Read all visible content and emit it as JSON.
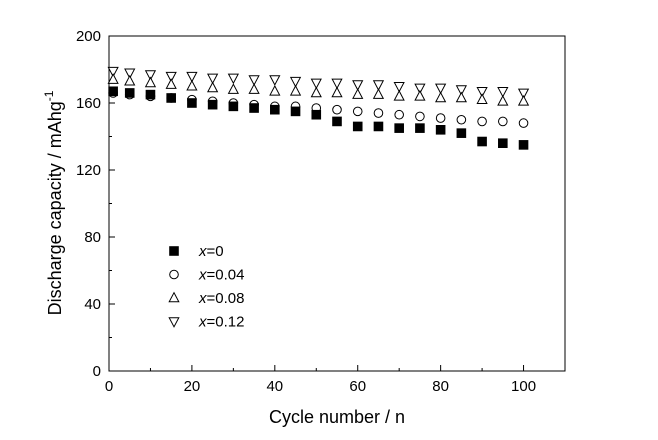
{
  "chart_data": {
    "type": "scatter",
    "xlabel": "Cycle number / n",
    "ylabel_main": "Discharge capacity / mAhg",
    "ylabel_sup": "-1",
    "xlim": [
      0,
      110
    ],
    "ylim": [
      0,
      200
    ],
    "xticks": [
      "0",
      "20",
      "40",
      "60",
      "80",
      "100"
    ],
    "yticks": [
      "0",
      "40",
      "80",
      "120",
      "160",
      "200"
    ],
    "grid": false,
    "legend_position": "lower-left",
    "series": [
      {
        "name_italic": "x",
        "name_rest": "=0",
        "marker": "filled-square",
        "x": [
          1,
          5,
          10,
          15,
          20,
          25,
          30,
          35,
          40,
          45,
          50,
          55,
          60,
          65,
          70,
          75,
          80,
          85,
          90,
          95,
          100
        ],
        "y": [
          167,
          166,
          165,
          163,
          160,
          159,
          158,
          157,
          156,
          155,
          153,
          149,
          146,
          146,
          145,
          145,
          144,
          142,
          137,
          136,
          135
        ]
      },
      {
        "name_italic": "x",
        "name_rest": "=0.04",
        "marker": "open-circle",
        "x": [
          1,
          5,
          10,
          15,
          20,
          25,
          30,
          35,
          40,
          45,
          50,
          55,
          60,
          65,
          70,
          75,
          80,
          85,
          90,
          95,
          100
        ],
        "y": [
          166,
          165,
          164,
          163,
          162,
          161,
          160,
          159,
          158,
          158,
          157,
          156,
          155,
          154,
          153,
          152,
          151,
          150,
          149,
          149,
          148
        ]
      },
      {
        "name_italic": "x",
        "name_rest": "=0.08",
        "marker": "open-triangle-up",
        "x": [
          1,
          5,
          10,
          15,
          20,
          25,
          30,
          35,
          40,
          45,
          50,
          55,
          60,
          65,
          70,
          75,
          80,
          85,
          90,
          95,
          100
        ],
        "y": [
          174,
          173,
          172,
          171,
          170,
          169,
          168,
          168,
          167,
          167,
          166,
          166,
          165,
          165,
          164,
          164,
          163,
          163,
          162,
          161,
          161
        ]
      },
      {
        "name_italic": "x",
        "name_rest": "=0.12",
        "marker": "open-triangle-down",
        "x": [
          1,
          5,
          10,
          15,
          20,
          25,
          30,
          35,
          40,
          45,
          50,
          55,
          60,
          65,
          70,
          75,
          80,
          85,
          90,
          95,
          100
        ],
        "y": [
          179,
          178,
          177,
          176,
          176,
          175,
          175,
          174,
          174,
          173,
          172,
          172,
          171,
          171,
          170,
          169,
          169,
          168,
          167,
          167,
          166
        ]
      }
    ]
  }
}
